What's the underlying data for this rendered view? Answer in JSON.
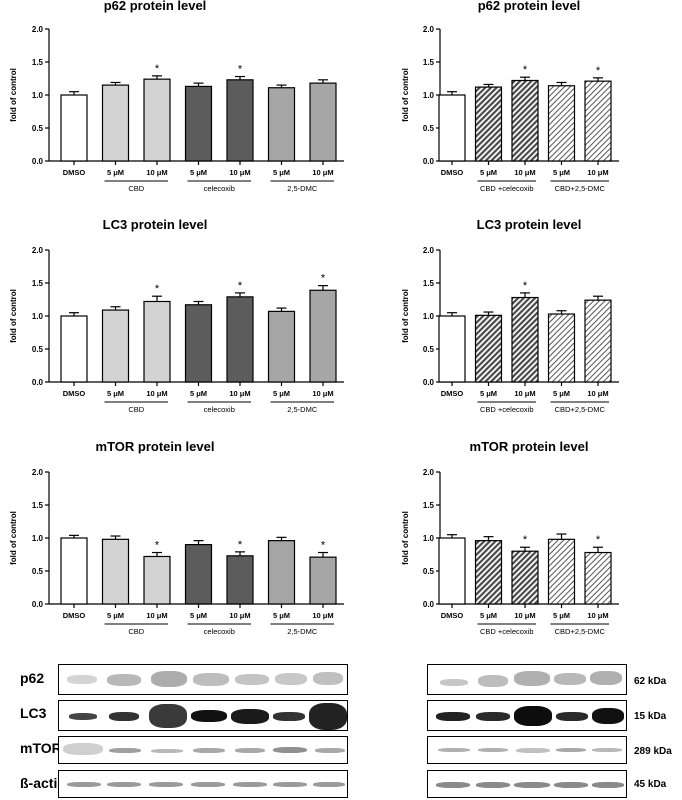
{
  "panels": [
    {
      "title": "p62 protein level",
      "ylabel": "fold of control",
      "yticks": [
        "0.0",
        "0.5",
        "1.0",
        "1.5",
        "2.0"
      ],
      "ylim": [
        0,
        2
      ],
      "bars": [
        {
          "label": "DMSO",
          "value": 1.0,
          "err": 0.05,
          "style": "white",
          "star": false
        },
        {
          "label": "5 μM",
          "value": 1.15,
          "err": 0.04,
          "style": "light",
          "star": false
        },
        {
          "label": "10 μM",
          "value": 1.24,
          "err": 0.05,
          "style": "light",
          "star": true
        },
        {
          "label": "5 μM",
          "value": 1.13,
          "err": 0.05,
          "style": "dark",
          "star": false
        },
        {
          "label": "10 μM",
          "value": 1.23,
          "err": 0.05,
          "style": "dark",
          "star": true
        },
        {
          "label": "5 μM",
          "value": 1.11,
          "err": 0.04,
          "style": "mid",
          "star": false
        },
        {
          "label": "10 μM",
          "value": 1.18,
          "err": 0.05,
          "style": "mid",
          "star": false
        }
      ],
      "groups": [
        {
          "label": "CBD",
          "from": 1,
          "to": 2
        },
        {
          "label": "celecoxib",
          "from": 3,
          "to": 4
        },
        {
          "label": "2,5-DMC",
          "from": 5,
          "to": 6
        }
      ]
    },
    {
      "title": "p62 protein level",
      "ylabel": "fold of control",
      "yticks": [
        "0.0",
        "0.5",
        "1.0",
        "1.5",
        "2.0"
      ],
      "ylim": [
        0,
        2
      ],
      "bars": [
        {
          "label": "DMSO",
          "value": 1.0,
          "err": 0.05,
          "style": "white",
          "star": false
        },
        {
          "label": "5 μM",
          "value": 1.12,
          "err": 0.04,
          "style": "hatch-dark",
          "star": false
        },
        {
          "label": "10 μM",
          "value": 1.22,
          "err": 0.05,
          "style": "hatch-dark",
          "star": true
        },
        {
          "label": "5 μM",
          "value": 1.14,
          "err": 0.05,
          "style": "hatch-light",
          "star": false
        },
        {
          "label": "10 μM",
          "value": 1.21,
          "err": 0.05,
          "style": "hatch-light",
          "star": true
        }
      ],
      "groups": [
        {
          "label": "CBD +celecoxib",
          "from": 1,
          "to": 2
        },
        {
          "label": "CBD+2,5-DMC",
          "from": 3,
          "to": 4
        }
      ]
    },
    {
      "title": "LC3 protein level",
      "ylabel": "fold of control",
      "yticks": [
        "0.0",
        "0.5",
        "1.0",
        "1.5",
        "2.0"
      ],
      "ylim": [
        0,
        2
      ],
      "bars": [
        {
          "label": "DMSO",
          "value": 1.0,
          "err": 0.05,
          "style": "white",
          "star": false
        },
        {
          "label": "5 μM",
          "value": 1.09,
          "err": 0.05,
          "style": "light",
          "star": false
        },
        {
          "label": "10 μM",
          "value": 1.22,
          "err": 0.08,
          "style": "light",
          "star": true
        },
        {
          "label": "5 μM",
          "value": 1.17,
          "err": 0.05,
          "style": "dark",
          "star": false
        },
        {
          "label": "10 μM",
          "value": 1.29,
          "err": 0.06,
          "style": "dark",
          "star": true
        },
        {
          "label": "5 μM",
          "value": 1.07,
          "err": 0.05,
          "style": "mid",
          "star": false
        },
        {
          "label": "10 μM",
          "value": 1.39,
          "err": 0.07,
          "style": "mid",
          "star": true
        }
      ],
      "groups": [
        {
          "label": "CBD",
          "from": 1,
          "to": 2
        },
        {
          "label": "celecoxib",
          "from": 3,
          "to": 4
        },
        {
          "label": "2,5-DMC",
          "from": 5,
          "to": 6
        }
      ]
    },
    {
      "title": "LC3 protein level",
      "ylabel": "fold of control",
      "yticks": [
        "0.0",
        "0.5",
        "1.0",
        "1.5",
        "2.0"
      ],
      "ylim": [
        0,
        2
      ],
      "bars": [
        {
          "label": "DMSO",
          "value": 1.0,
          "err": 0.05,
          "style": "white",
          "star": false
        },
        {
          "label": "5 μM",
          "value": 1.01,
          "err": 0.05,
          "style": "hatch-dark",
          "star": false
        },
        {
          "label": "10 μM",
          "value": 1.28,
          "err": 0.07,
          "style": "hatch-dark",
          "star": true
        },
        {
          "label": "5 μM",
          "value": 1.03,
          "err": 0.05,
          "style": "hatch-light",
          "star": false
        },
        {
          "label": "10 μM",
          "value": 1.24,
          "err": 0.06,
          "style": "hatch-light",
          "star": false
        }
      ],
      "groups": [
        {
          "label": "CBD +celecoxib",
          "from": 1,
          "to": 2
        },
        {
          "label": "CBD+2,5-DMC",
          "from": 3,
          "to": 4
        }
      ]
    },
    {
      "title": "mTOR protein level",
      "ylabel": "fold of control",
      "yticks": [
        "0.0",
        "0.5",
        "1.0",
        "1.5",
        "2.0"
      ],
      "ylim": [
        0,
        2
      ],
      "bars": [
        {
          "label": "DMSO",
          "value": 1.0,
          "err": 0.04,
          "style": "white",
          "star": false
        },
        {
          "label": "5 μM",
          "value": 0.98,
          "err": 0.05,
          "style": "light",
          "star": false
        },
        {
          "label": "10 μM",
          "value": 0.72,
          "err": 0.06,
          "style": "light",
          "star": true
        },
        {
          "label": "5 μM",
          "value": 0.9,
          "err": 0.06,
          "style": "dark",
          "star": false
        },
        {
          "label": "10 μM",
          "value": 0.73,
          "err": 0.06,
          "style": "dark",
          "star": true
        },
        {
          "label": "5 μM",
          "value": 0.96,
          "err": 0.05,
          "style": "mid",
          "star": false
        },
        {
          "label": "10 μM",
          "value": 0.71,
          "err": 0.07,
          "style": "mid",
          "star": true
        }
      ],
      "groups": [
        {
          "label": "CBD",
          "from": 1,
          "to": 2
        },
        {
          "label": "celecoxib",
          "from": 3,
          "to": 4
        },
        {
          "label": "2,5-DMC",
          "from": 5,
          "to": 6
        }
      ]
    },
    {
      "title": "mTOR protein level",
      "ylabel": "fold of control",
      "yticks": [
        "0.0",
        "0.5",
        "1.0",
        "1.5",
        "2.0"
      ],
      "ylim": [
        0,
        2
      ],
      "bars": [
        {
          "label": "DMSO",
          "value": 1.0,
          "err": 0.05,
          "style": "white",
          "star": false
        },
        {
          "label": "5 μM",
          "value": 0.96,
          "err": 0.06,
          "style": "hatch-dark",
          "star": false
        },
        {
          "label": "10 μM",
          "value": 0.8,
          "err": 0.06,
          "style": "hatch-dark",
          "star": true
        },
        {
          "label": "5 μM",
          "value": 0.98,
          "err": 0.08,
          "style": "hatch-light",
          "star": false
        },
        {
          "label": "10 μM",
          "value": 0.78,
          "err": 0.08,
          "style": "hatch-light",
          "star": true
        }
      ],
      "groups": [
        {
          "label": "CBD +celecoxib",
          "from": 1,
          "to": 2
        },
        {
          "label": "CBD+2,5-DMC",
          "from": 3,
          "to": 4
        }
      ]
    }
  ],
  "chart_data": [
    {
      "type": "bar",
      "title": "p62 protein level",
      "ylabel": "fold of control",
      "ylim": [
        0,
        2
      ],
      "categories": [
        "DMSO",
        "CBD 5 μM",
        "CBD 10 μM",
        "celecoxib 5 μM",
        "celecoxib 10 μM",
        "2,5-DMC 5 μM",
        "2,5-DMC 10 μM"
      ],
      "values": [
        1.0,
        1.15,
        1.24,
        1.13,
        1.23,
        1.11,
        1.18
      ]
    },
    {
      "type": "bar",
      "title": "p62 protein level",
      "ylabel": "fold of control",
      "ylim": [
        0,
        2
      ],
      "categories": [
        "DMSO",
        "CBD +celecoxib 5 μM",
        "CBD +celecoxib 10 μM",
        "CBD+2,5-DMC 5 μM",
        "CBD+2,5-DMC 10 μM"
      ],
      "values": [
        1.0,
        1.12,
        1.22,
        1.14,
        1.21
      ]
    },
    {
      "type": "bar",
      "title": "LC3 protein level",
      "ylabel": "fold of control",
      "ylim": [
        0,
        2
      ],
      "categories": [
        "DMSO",
        "CBD 5 μM",
        "CBD 10 μM",
        "celecoxib 5 μM",
        "celecoxib 10 μM",
        "2,5-DMC 5 μM",
        "2,5-DMC 10 μM"
      ],
      "values": [
        1.0,
        1.09,
        1.22,
        1.17,
        1.29,
        1.07,
        1.39
      ]
    },
    {
      "type": "bar",
      "title": "LC3 protein level",
      "ylabel": "fold of control",
      "ylim": [
        0,
        2
      ],
      "categories": [
        "DMSO",
        "CBD +celecoxib 5 μM",
        "CBD +celecoxib 10 μM",
        "CBD+2,5-DMC 5 μM",
        "CBD+2,5-DMC 10 μM"
      ],
      "values": [
        1.0,
        1.01,
        1.28,
        1.03,
        1.24
      ]
    },
    {
      "type": "bar",
      "title": "mTOR protein level",
      "ylabel": "fold of control",
      "ylim": [
        0,
        2
      ],
      "categories": [
        "DMSO",
        "CBD 5 μM",
        "CBD 10 μM",
        "celecoxib 5 μM",
        "celecoxib 10 μM",
        "2,5-DMC 5 μM",
        "2,5-DMC 10 μM"
      ],
      "values": [
        1.0,
        0.98,
        0.72,
        0.9,
        0.73,
        0.96,
        0.71
      ]
    },
    {
      "type": "bar",
      "title": "mTOR protein level",
      "ylabel": "fold of control",
      "ylim": [
        0,
        2
      ],
      "categories": [
        "DMSO",
        "CBD +celecoxib 5 μM",
        "CBD +celecoxib 10 μM",
        "CBD+2,5-DMC 5 μM",
        "CBD+2,5-DMC 10 μM"
      ],
      "values": [
        1.0,
        0.96,
        0.8,
        0.98,
        0.78
      ]
    }
  ],
  "colors": {
    "white": "#ffffff",
    "light": "#d3d3d3",
    "dark": "#5c5c5c",
    "mid": "#a6a6a6",
    "hatch-dark": "#555555",
    "hatch-light": "#888888"
  },
  "significance_marker": "*",
  "blots": {
    "row_labels": [
      "p62",
      "LC3",
      "mTOR",
      "ß-actin"
    ],
    "kda_labels": [
      "62 kDa",
      "15 kDa",
      "289 kDa",
      "45 kDa"
    ]
  }
}
